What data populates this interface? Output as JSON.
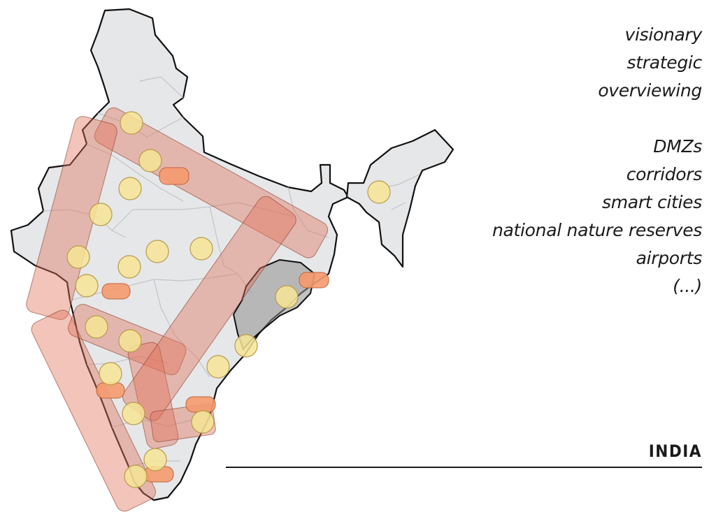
{
  "qualities": [
    "visionary",
    "strategic",
    "overviewing"
  ],
  "features": [
    "DMZs",
    "corridors",
    "smart cities",
    "national nature reserves",
    "airports",
    "(...)"
  ],
  "country_label": "INDIA",
  "colors": {
    "land": "#e6e7e9",
    "border": "#111111",
    "internal_border": "#c2c4c8",
    "corridor": "#e0735a",
    "corridor_stroke": "#8a3a28",
    "city": "#f6e595",
    "city_stroke": "#b89a4a",
    "airport": "#f59a6e",
    "highlight_region": "#8f8f8f"
  },
  "icons": {
    "smart_city": "circle-marker",
    "airport": "rounded-rect-marker"
  }
}
